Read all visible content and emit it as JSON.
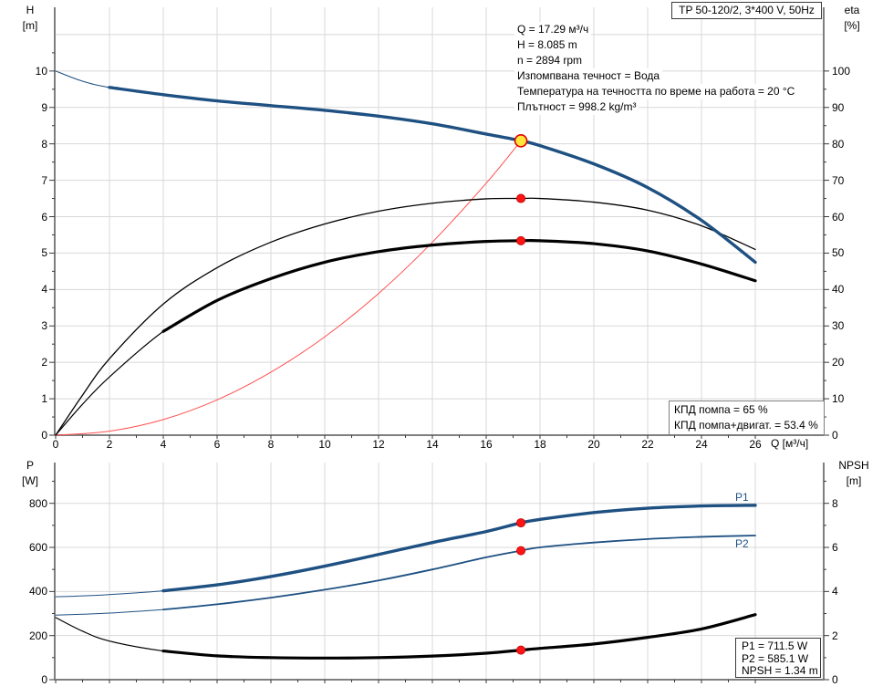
{
  "title_box": {
    "text": "TP 50-120/2, 3*400 V, 50Hz"
  },
  "info_block": {
    "lines": [
      "Q = 17.29 м³/ч",
      "H = 8.085 m",
      "n = 2894 rpm",
      "Изпомпвана течност = Вода",
      "Температура на течността по време на работа = 20 °C",
      "Плътност = 998.2 kg/m³"
    ]
  },
  "kpd_box": {
    "lines": [
      "КПД помпа = 65 %",
      "КПД помпа+двигат. = 53.4 %"
    ]
  },
  "power_box": {
    "lines": [
      "P1 = 711.5 W",
      "P2 = 585.1 W",
      "NPSH = 1.34 m"
    ]
  },
  "axes": {
    "top_left": [
      "H",
      "[m]"
    ],
    "top_right": [
      "eta",
      "[%]"
    ],
    "bottom_left": [
      "P",
      "[W]"
    ],
    "bottom_right": [
      "NPSH",
      "[m]"
    ],
    "x_label": "Q [м³/ч]"
  },
  "curve_labels": {
    "p1": "P1",
    "p2": "P2"
  },
  "colors": {
    "curve_blue": "#1e5082",
    "curve_black": "#000000",
    "curve_red": "#ff5050",
    "marker_red": "#fe1414",
    "marker_red_edge": "#c00000",
    "marker_yellow": "#ffe53c",
    "marker_yellow_edge": "#e00000",
    "grid": "#d8d8d8",
    "frame": "#7f7f7f",
    "tick": "#3a3a3a",
    "label_blue": "#1e5082"
  },
  "operating_point": {
    "Q": 17.29,
    "H": 8.085,
    "n_rpm": 2894,
    "eta_pump_pct": 65,
    "eta_pump_motor_pct": 53.4,
    "P1_W": 711.5,
    "P2_W": 585.1,
    "NPSH_m": 1.34
  },
  "chart_data": [
    {
      "type": "line",
      "title": "TP 50-120/2, 3*400 V, 50Hz",
      "xlabel": "Q [м³/ч]",
      "ylabel_left": "H [m]",
      "ylabel_right": "eta [%]",
      "xlim": [
        0,
        28.5
      ],
      "ylim_left": [
        0,
        11.75
      ],
      "ylim_right": [
        0,
        117.5
      ],
      "xticks": [
        0,
        2,
        4,
        6,
        8,
        10,
        12,
        14,
        16,
        18,
        20,
        22,
        24,
        26
      ],
      "xminor": [
        1,
        3,
        5,
        7,
        9,
        11,
        13,
        15,
        17,
        19,
        21,
        23,
        25
      ],
      "show_xtick_labels": true,
      "yticks_left": [
        0,
        1,
        2,
        3,
        4,
        5,
        6,
        7,
        8,
        9,
        10
      ],
      "yminor_left": [
        0.5,
        1.5,
        2.5,
        3.5,
        4.5,
        5.5,
        6.5,
        7.5,
        8.5,
        9.5,
        10.5
      ],
      "yticks_right": [
        0,
        10,
        20,
        30,
        40,
        50,
        60,
        70,
        80,
        90,
        100
      ],
      "yminor_right": [
        5,
        15,
        25,
        35,
        45,
        55,
        65,
        75,
        85,
        95
      ],
      "grid_left": [
        1,
        2,
        3,
        4,
        5,
        6,
        7,
        8,
        9,
        10,
        11
      ],
      "series": [
        {
          "name": "system-curve",
          "axis": "left",
          "color_key": "curve_red",
          "thin": 1.0,
          "thick": 0,
          "thick_from": 99,
          "x": [
            0,
            2,
            4,
            6,
            8,
            10,
            12,
            14,
            16,
            17.29
          ],
          "y": [
            0,
            0.11,
            0.43,
            0.97,
            1.73,
            2.7,
            3.89,
            5.3,
            6.92,
            8.085
          ]
        },
        {
          "name": "efficiency-pump",
          "axis": "right",
          "color_key": "curve_black",
          "thin": 1.3,
          "thick": 0,
          "thick_from": 99,
          "x": [
            0,
            1,
            2,
            4,
            6,
            8,
            10,
            12,
            14,
            16,
            17.29,
            18,
            20,
            22,
            24,
            26
          ],
          "y": [
            0,
            11,
            21,
            36,
            46,
            53,
            58,
            61.5,
            63.7,
            64.9,
            65,
            65,
            64,
            61.8,
            57.5,
            51
          ]
        },
        {
          "name": "efficiency-pump-motor",
          "axis": "right",
          "color_key": "curve_black",
          "thin": 1.2,
          "thick": 3.2,
          "thick_from": 2.8,
          "x": [
            0,
            1,
            2,
            4,
            6,
            8,
            10,
            12,
            14,
            16,
            17.29,
            18,
            20,
            22,
            24,
            26
          ],
          "y": [
            0,
            8.5,
            16,
            28.5,
            37,
            43,
            47.5,
            50.4,
            52.2,
            53.2,
            53.4,
            53.4,
            52.6,
            50.6,
            47,
            42.4
          ]
        },
        {
          "name": "pump-curve-HQ",
          "axis": "left",
          "color_key": "curve_blue",
          "thin": 1.1,
          "thick": 3.4,
          "thick_from": 1.5,
          "x": [
            0,
            1,
            2,
            4,
            6,
            8,
            10,
            12,
            14,
            16,
            17.29,
            18,
            20,
            22,
            24,
            26
          ],
          "y": [
            10,
            9.72,
            9.55,
            9.35,
            9.18,
            9.05,
            8.92,
            8.76,
            8.55,
            8.27,
            8.085,
            7.95,
            7.45,
            6.8,
            5.9,
            4.75
          ]
        }
      ],
      "markers": [
        {
          "name": "duty-point-marker",
          "x": 17.29,
          "y": 8.085,
          "axis": "left",
          "style": "duty"
        },
        {
          "name": "efficiency-pump-point",
          "x": 17.29,
          "y": 65,
          "axis": "right",
          "style": "point"
        },
        {
          "name": "efficiency-pump-motor-point",
          "x": 17.29,
          "y": 53.4,
          "axis": "right",
          "style": "point"
        }
      ]
    },
    {
      "type": "line",
      "title": "",
      "xlabel": "",
      "ylabel_left": "P [W]",
      "ylabel_right": "NPSH [m]",
      "xlim": [
        0,
        28.5
      ],
      "ylim_left": [
        0,
        985
      ],
      "ylim_right": [
        0,
        9.85
      ],
      "xticks": [
        0,
        2,
        4,
        6,
        8,
        10,
        12,
        14,
        16,
        18,
        20,
        22,
        24,
        26
      ],
      "xminor": [
        1,
        3,
        5,
        7,
        9,
        11,
        13,
        15,
        17,
        19,
        21,
        23,
        25
      ],
      "show_xtick_labels": false,
      "yticks_left": [
        0,
        200,
        400,
        600,
        800
      ],
      "yminor_left": [
        100,
        300,
        500,
        700,
        900
      ],
      "yticks_right": [
        0,
        2,
        4,
        6,
        8
      ],
      "yminor_right": [
        1,
        3,
        5,
        7,
        9
      ],
      "grid_left": [
        200,
        400,
        600,
        800
      ],
      "series": [
        {
          "name": "NPSH-curve",
          "axis": "right",
          "color_key": "curve_black",
          "thin": 1.2,
          "thick": 3.2,
          "thick_from": 2.2,
          "x": [
            0,
            1,
            2,
            4,
            6,
            8,
            10,
            12,
            14,
            16,
            17.29,
            18,
            20,
            22,
            24,
            26
          ],
          "y": [
            2.82,
            2.2,
            1.75,
            1.3,
            1.08,
            1.0,
            0.98,
            1.0,
            1.07,
            1.2,
            1.34,
            1.42,
            1.62,
            1.92,
            2.3,
            2.95
          ]
        },
        {
          "name": "P2-curve",
          "axis": "left",
          "color_key": "curve_blue",
          "thin": 1.0,
          "thick": 1.8,
          "thick_from": 2.5,
          "x": [
            0,
            1,
            2,
            4,
            6,
            8,
            10,
            12,
            14,
            16,
            17.29,
            18,
            20,
            22,
            24,
            26
          ],
          "y": [
            293,
            297,
            302,
            318,
            342,
            372,
            408,
            450,
            500,
            555,
            585.1,
            600,
            622,
            638,
            648,
            654
          ]
        },
        {
          "name": "P1-curve",
          "axis": "left",
          "color_key": "curve_blue",
          "thin": 1.0,
          "thick": 3.4,
          "thick_from": 2.5,
          "x": [
            0,
            1,
            2,
            4,
            6,
            8,
            10,
            12,
            14,
            16,
            17.29,
            18,
            20,
            22,
            24,
            26
          ],
          "y": [
            376,
            380,
            386,
            403,
            430,
            468,
            515,
            568,
            622,
            672,
            711.5,
            727,
            758,
            778,
            788,
            791
          ]
        }
      ],
      "markers": [
        {
          "name": "P1-point",
          "x": 17.29,
          "y": 711.5,
          "axis": "left",
          "style": "point"
        },
        {
          "name": "P2-point",
          "x": 17.29,
          "y": 585.1,
          "axis": "left",
          "style": "point"
        },
        {
          "name": "NPSH-point",
          "x": 17.29,
          "y": 1.34,
          "axis": "right",
          "style": "point"
        }
      ]
    }
  ]
}
